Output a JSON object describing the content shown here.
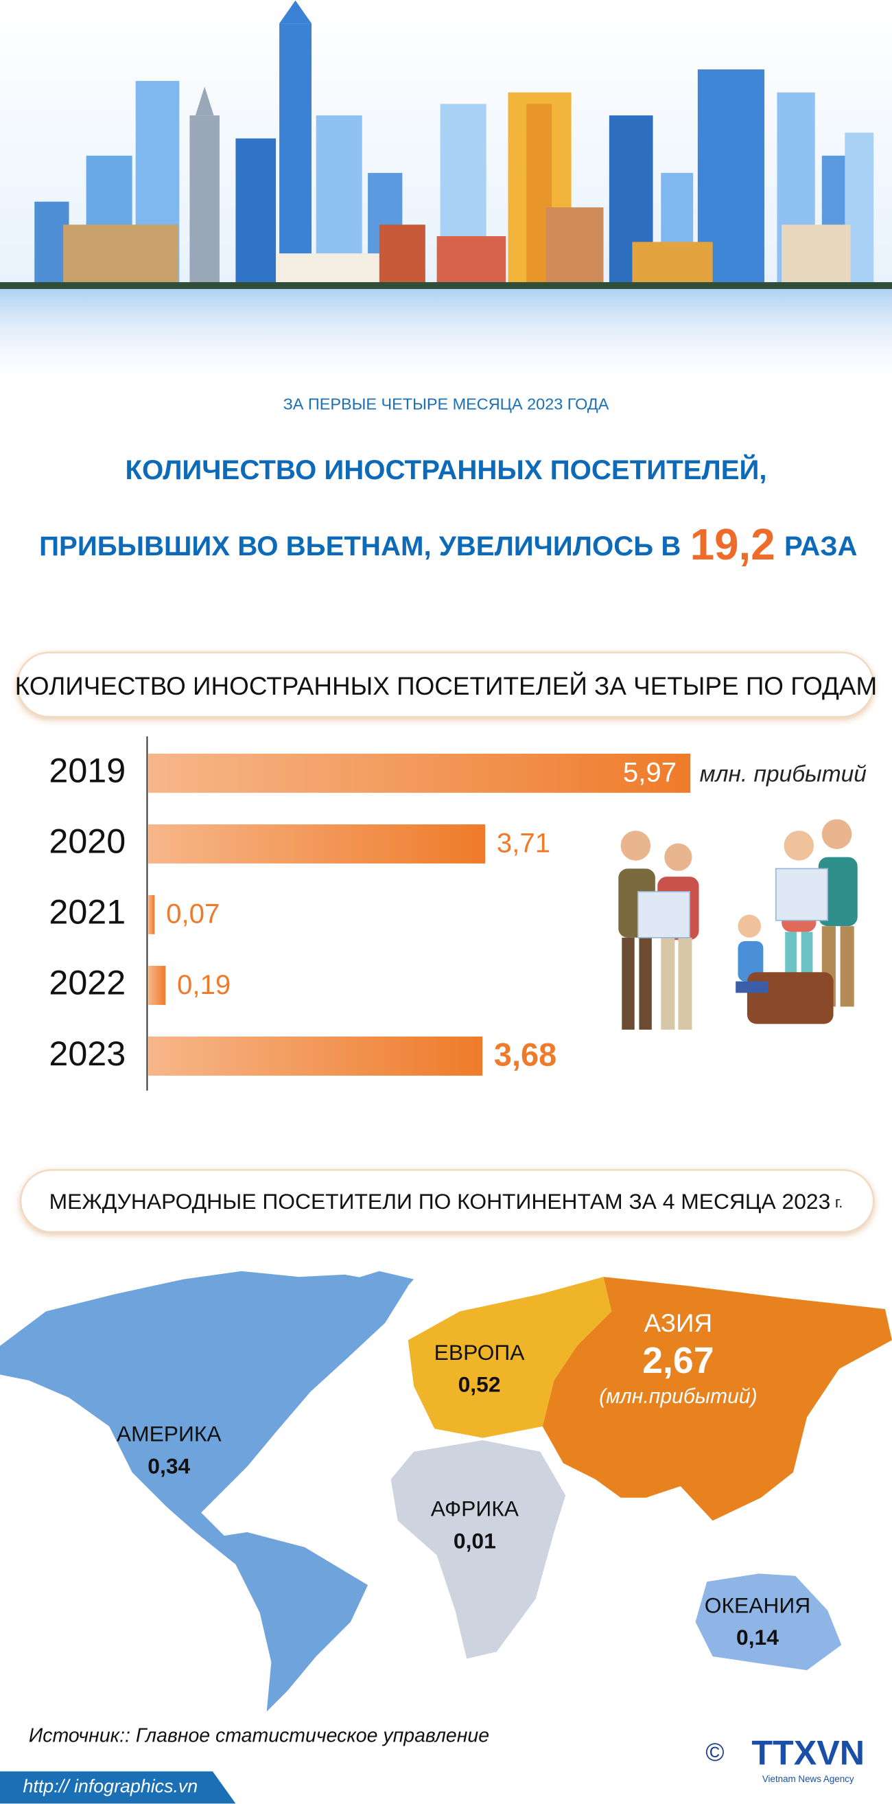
{
  "header": {
    "subtitle": "ЗА ПЕРВЫЕ ЧЕТЫРЕ МЕСЯЦА 2023 ГОДА",
    "title_line1": "КОЛИЧЕСТВО ИНОСТРАННЫХ ПОСЕТИТЕЛЕЙ,",
    "title_line2": "ПРИБЫВШИХ ВО ВЬЕТНАМ, УВЕЛИЧИЛОСЬ В",
    "factor": "19,2",
    "title_end": "РАЗА"
  },
  "chart_data": {
    "type": "bar",
    "orientation": "horizontal",
    "title": "КОЛИЧЕСТВО ИНОСТРАННЫХ ПОСЕТИТЕЛЕЙ ЗА ЧЕТЫРЕ ПО ГОДАМ",
    "categories": [
      "2019",
      "2020",
      "2021",
      "2022",
      "2023"
    ],
    "values": [
      5.97,
      3.71,
      0.07,
      0.19,
      3.68
    ],
    "value_labels": [
      "5,97",
      "3,71",
      "0,07",
      "0,19",
      "3,68"
    ],
    "unit": "млн. прибытий",
    "xlim": [
      0,
      6
    ],
    "color": "#ef7b2a"
  },
  "map": {
    "title": "МЕЖДУНАРОДНЫЕ ПОСЕТИТЕЛИ ПО КОНТИНЕНТАМ ЗА 4 МЕСЯЦА 2023",
    "title_suffix": "г.",
    "regions": [
      {
        "name": "АМЕРИКА",
        "value": "0,34"
      },
      {
        "name": "ЕВРОПА",
        "value": "0,52"
      },
      {
        "name": "АЗИЯ",
        "value": "2,67",
        "unit": "(млн.прибытий)"
      },
      {
        "name": "АФРИКА",
        "value": "0,01"
      },
      {
        "name": "ОКЕАНИЯ",
        "value": "0,14"
      }
    ]
  },
  "footer": {
    "source": "Источник:: Главное статистическое управление",
    "url": "http:// infographics.vn",
    "copyright": "©",
    "logo": "TTXVN",
    "agency": "Vietnam News Agency"
  }
}
